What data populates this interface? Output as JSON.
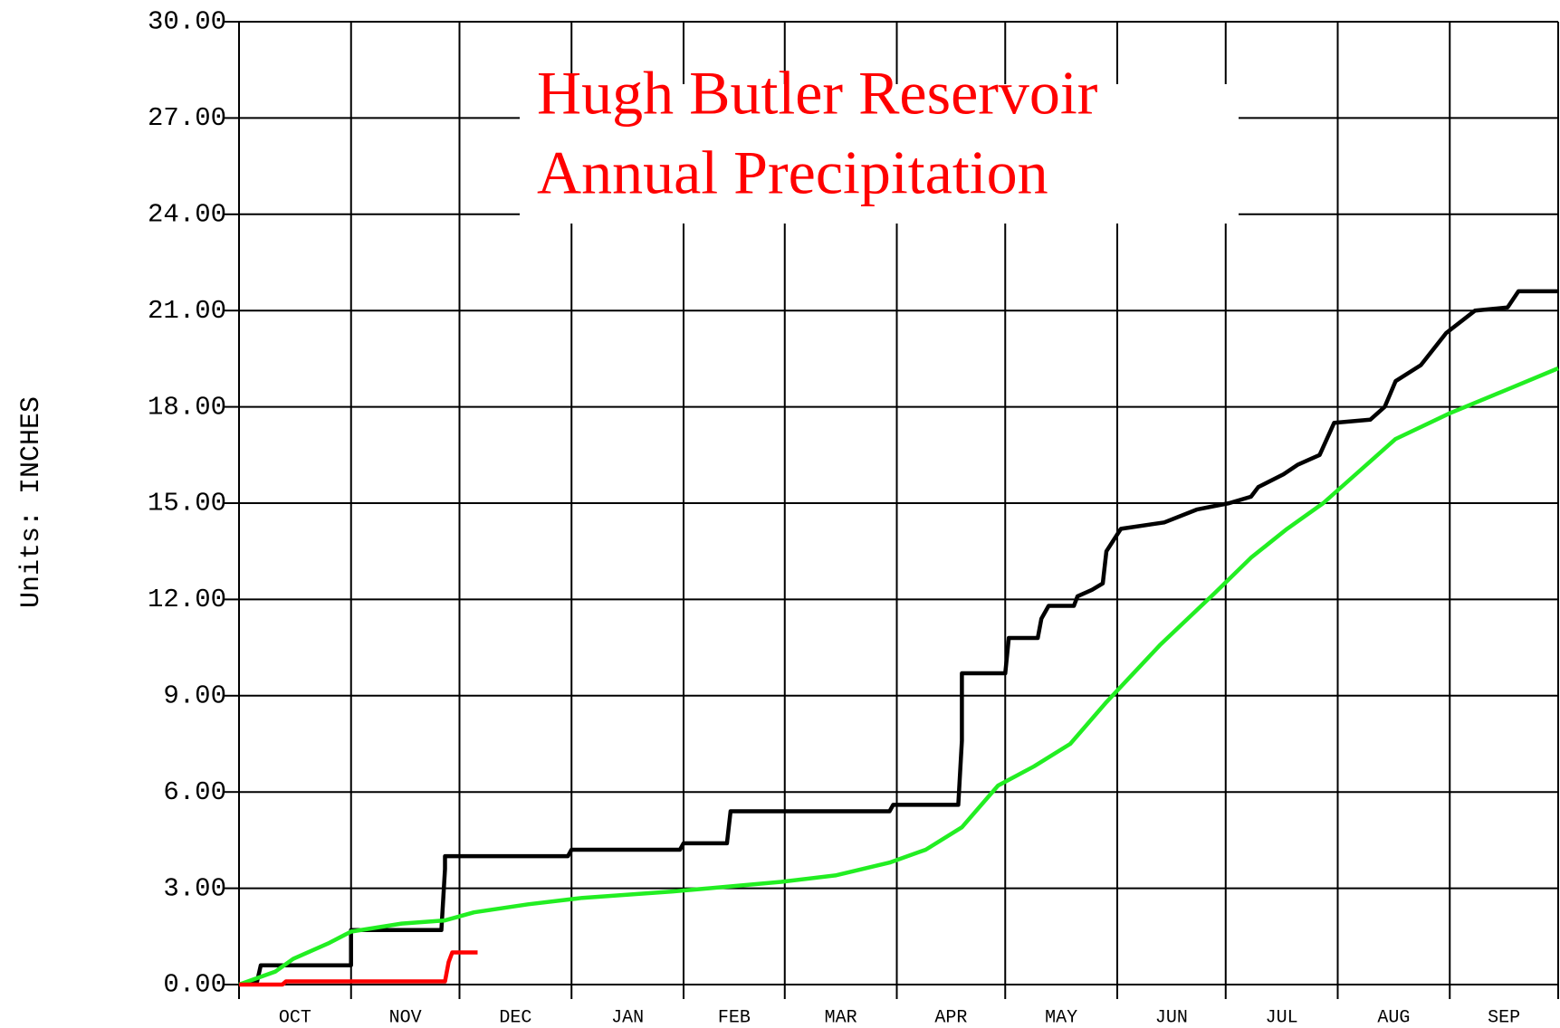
{
  "chart_data": {
    "type": "line",
    "title": [
      "Hugh Butler Reservoir",
      "Annual Precipitation"
    ],
    "y_label": "Units: INCHES",
    "categories": [
      "OCT",
      "NOV",
      "DEC",
      "JAN",
      "FEB",
      "MAR",
      "APR",
      "MAY",
      "JUN",
      "JUL",
      "AUG",
      "SEP"
    ],
    "xlim": [
      0,
      365
    ],
    "xticks": [
      0,
      31,
      61,
      92,
      123,
      151,
      182,
      212,
      243,
      273,
      304,
      335,
      365
    ],
    "ylim": [
      0,
      30
    ],
    "yticks": [
      {
        "value": 0,
        "label": "0.00"
      },
      {
        "value": 3,
        "label": "3.00"
      },
      {
        "value": 6,
        "label": "6.00"
      },
      {
        "value": 9,
        "label": "9.00"
      },
      {
        "value": 12,
        "label": "12.00"
      },
      {
        "value": 15,
        "label": "15.00"
      },
      {
        "value": 18,
        "label": "18.00"
      },
      {
        "value": 21,
        "label": "21.00"
      },
      {
        "value": 24,
        "label": "24.00"
      },
      {
        "value": 27,
        "label": "27.00"
      },
      {
        "value": 30,
        "label": "30.00"
      }
    ],
    "grid": true,
    "series": [
      {
        "color": "#000000",
        "x": [
          0,
          5,
          6,
          31,
          31,
          56,
          57,
          57,
          91,
          92,
          122,
          123,
          135,
          136,
          180,
          181,
          199,
          200,
          200,
          212,
          213,
          221,
          222,
          224,
          231,
          232,
          236,
          239,
          240,
          244,
          256,
          265,
          274,
          280,
          282,
          289,
          293,
          299,
          303,
          313,
          317,
          320,
          327,
          334,
          342,
          351,
          354,
          365
        ],
        "values": [
          0,
          0.1,
          0.6,
          0.6,
          1.7,
          1.7,
          3.6,
          4.0,
          4.0,
          4.2,
          4.2,
          4.4,
          4.4,
          5.4,
          5.4,
          5.6,
          5.6,
          7.6,
          9.7,
          9.7,
          10.8,
          10.8,
          11.4,
          11.8,
          11.8,
          12.1,
          12.3,
          12.5,
          13.5,
          14.2,
          14.4,
          14.8,
          15.0,
          15.2,
          15.5,
          15.9,
          16.2,
          16.5,
          17.5,
          17.6,
          18.0,
          18.8,
          19.3,
          20.3,
          21.0,
          21.1,
          21.6,
          21.6
        ]
      },
      {
        "color": "#22ee22",
        "x": [
          0,
          10,
          15,
          25,
          31,
          45,
          57,
          65,
          80,
          95,
          120,
          130,
          150,
          165,
          180,
          190,
          200,
          210,
          220,
          230,
          240,
          255,
          270,
          280,
          290,
          300,
          310,
          320,
          335,
          350,
          365
        ],
        "values": [
          0,
          0.4,
          0.8,
          1.3,
          1.65,
          1.9,
          2.0,
          2.25,
          2.5,
          2.7,
          2.9,
          3.0,
          3.2,
          3.4,
          3.8,
          4.2,
          4.9,
          6.2,
          6.8,
          7.5,
          8.8,
          10.6,
          12.2,
          13.3,
          14.2,
          15.0,
          16.0,
          17.0,
          17.8,
          18.5,
          19.2
        ]
      },
      {
        "color": "#ff0000",
        "x": [
          0,
          12,
          13,
          57,
          58,
          59,
          66
        ],
        "values": [
          0,
          0,
          0.1,
          0.1,
          0.7,
          1.0,
          1.0
        ]
      }
    ]
  }
}
